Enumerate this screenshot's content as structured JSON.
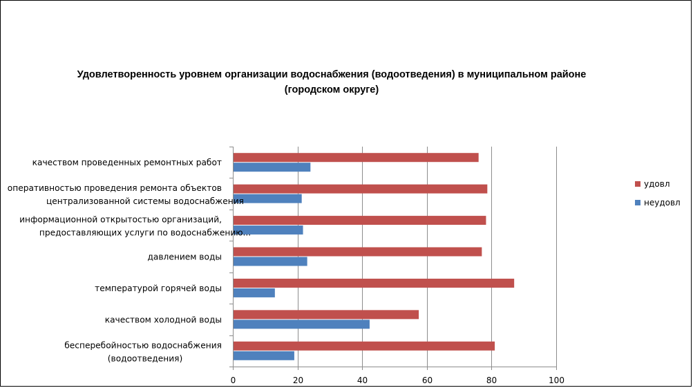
{
  "chart_data": {
    "type": "bar",
    "orientation": "horizontal",
    "title_line1": "Удовлетворенность уровнем организации водоснабжения (водоотведения) в муниципальном районе",
    "title_line2": "(городском округе)",
    "xlabel": "",
    "ylabel": "",
    "xlim": [
      0,
      100
    ],
    "ticks": [
      0,
      20,
      40,
      60,
      80,
      100
    ],
    "tick_labels": [
      "0",
      "20",
      "40",
      "60",
      "80",
      "100"
    ],
    "grid": true,
    "legend_position": "right",
    "categories": [
      [
        "бесперебойностью  водоснабжения",
        "(водоотведения)"
      ],
      [
        "качеством холодной воды"
      ],
      [
        "температурой горячей воды"
      ],
      [
        "давлением воды"
      ],
      [
        "информационной открытостью организаций,",
        "предоставляющих услуги по водоснабжению..."
      ],
      [
        "оперативностью проведения ремонта объектов",
        "централизованной системы водоснабжения"
      ],
      [
        "качеством проведенных ремонтных работ"
      ]
    ],
    "series": [
      {
        "name": "удовл",
        "color": "#c0504d",
        "values": [
          81,
          57.5,
          87,
          77,
          78.3,
          78.7,
          76
        ]
      },
      {
        "name": "неудовл",
        "color": "#4f81bd",
        "values": [
          19,
          42.3,
          13,
          23,
          21.7,
          21.3,
          24
        ]
      }
    ]
  }
}
